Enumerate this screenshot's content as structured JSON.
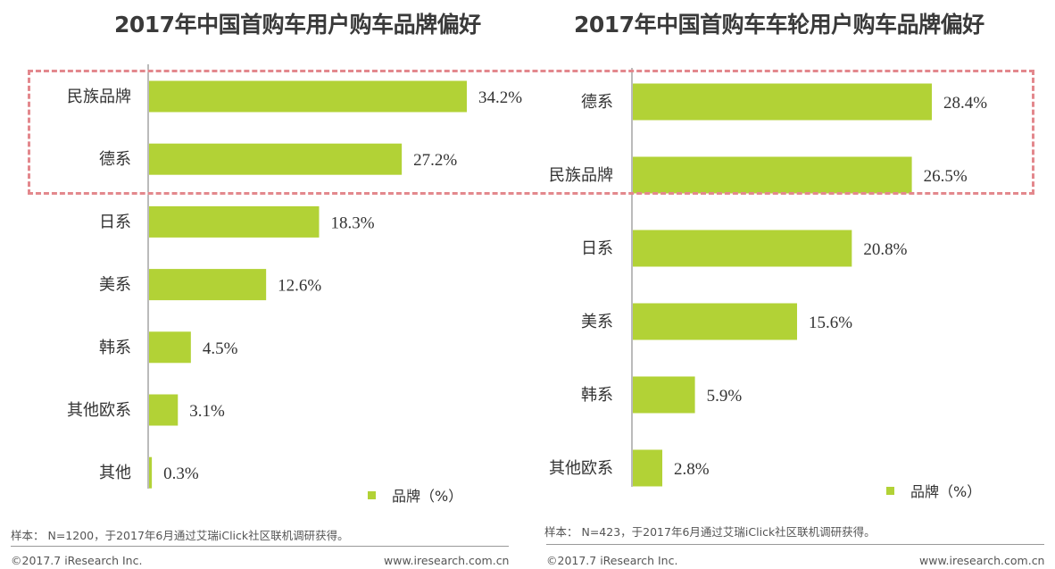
{
  "chart_data": [
    {
      "type": "bar",
      "orientation": "horizontal",
      "title": "2017年中国首购车用户购车品牌偏好",
      "categories": [
        "民族品牌",
        "德系",
        "日系",
        "美系",
        "韩系",
        "其他欧系",
        "其他"
      ],
      "value_labels": [
        "34.2%",
        "27.2%",
        "18.3%",
        "12.6%",
        "4.5%",
        "3.1%",
        "0.3%"
      ],
      "series": [
        {
          "name": "品牌（%）",
          "values": [
            34.2,
            27.2,
            18.3,
            12.6,
            4.5,
            3.1,
            0.3
          ]
        }
      ],
      "xlim": [
        0,
        34.2
      ],
      "legend": "bottom-right",
      "grid": false,
      "color": "#b2d236"
    },
    {
      "type": "bar",
      "orientation": "horizontal",
      "title": "2017年中国首购车车轮用户购车品牌偏好",
      "categories": [
        "德系",
        "民族品牌",
        "日系",
        "美系",
        "韩系",
        "其他欧系"
      ],
      "value_labels": [
        "28.4%",
        "26.5%",
        "20.8%",
        "15.6%",
        "5.9%",
        "2.8%"
      ],
      "series": [
        {
          "name": "品牌（%）",
          "values": [
            28.4,
            26.5,
            20.8,
            15.6,
            5.9,
            2.8
          ]
        }
      ],
      "xlim": [
        0,
        28.4
      ],
      "legend": "bottom-right",
      "grid": false,
      "color": "#b2d236"
    }
  ],
  "notes": {
    "left": "样本： N=1200，于2017年6月通过艾瑞iClick社区联机调研获得。",
    "right": "样本： N=423，于2017年6月通过艾瑞iClick社区联机调研获得。"
  },
  "footer": {
    "copyright": "©2017.7 iResearch Inc.",
    "website": "www.iresearch.com.cn"
  },
  "colors": {
    "bar": "#b2d236",
    "highlight": "#e3888d",
    "title": "#3a3a3a"
  }
}
